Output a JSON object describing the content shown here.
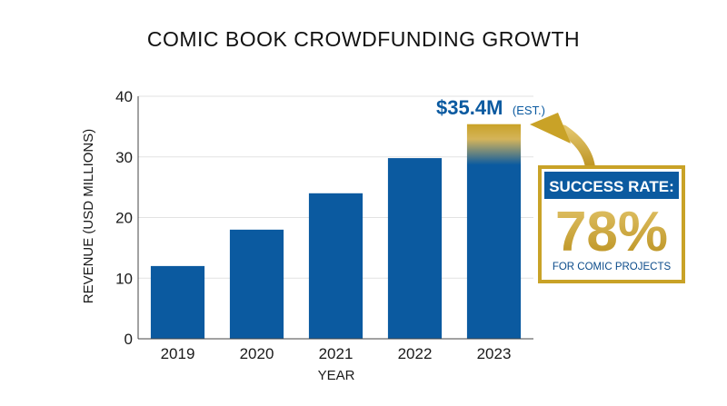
{
  "chart_data": {
    "type": "bar",
    "title": "COMIC BOOK CROWDFUNDING GROWTH",
    "xlabel": "YEAR",
    "ylabel": "REVENUE (USD MILLIONS)",
    "categories": [
      "2019",
      "2020",
      "2021",
      "2022",
      "2023"
    ],
    "values": [
      12,
      18,
      24,
      29.8,
      35.4
    ],
    "ylim": [
      0,
      40
    ],
    "yticks": [
      0,
      10,
      20,
      30,
      40
    ],
    "grid": true,
    "colors": {
      "bar": "#0b5aa0",
      "gold": "#c9a227",
      "highlight_end": "#d4b45a"
    },
    "annotation": {
      "value": "$35.4M",
      "suffix": "(EST.)",
      "category": "2023"
    },
    "callout": {
      "heading": "SUCCESS RATE:",
      "value": "78%",
      "subtext": "FOR COMIC PROJECTS"
    }
  }
}
